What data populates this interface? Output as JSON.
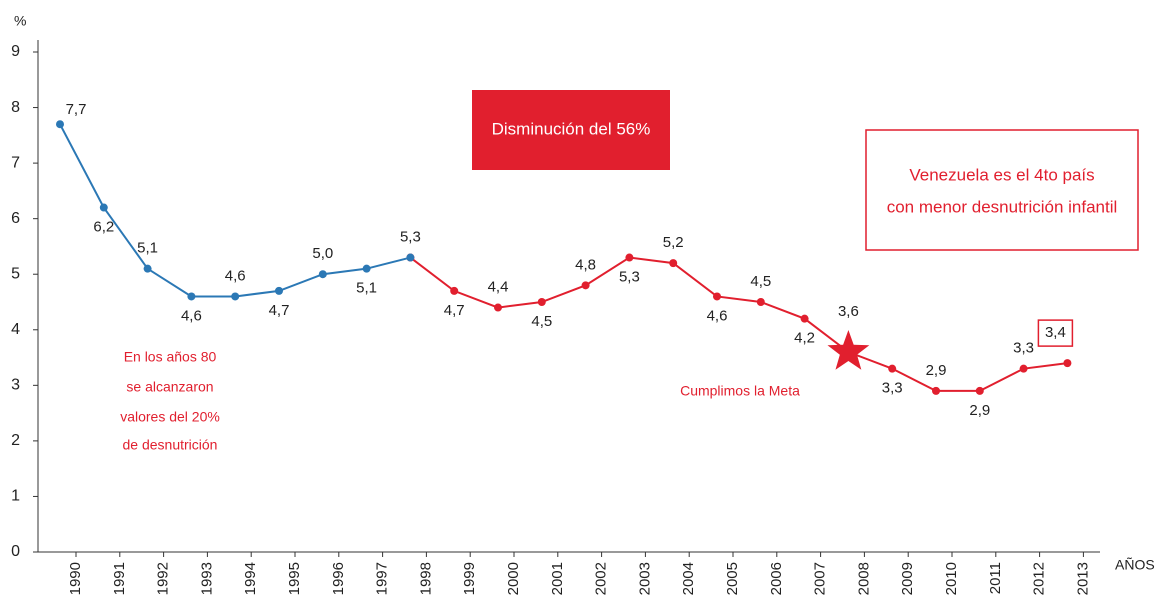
{
  "chart_data": {
    "type": "line",
    "y_label": "%",
    "x_label": "AÑOS",
    "categories": [
      "1990",
      "1991",
      "1992",
      "1993",
      "1994",
      "1995",
      "1996",
      "1997",
      "1998",
      "1999",
      "2000",
      "2001",
      "2002",
      "2003",
      "2004",
      "2005",
      "2006",
      "2007",
      "2008",
      "2009",
      "2010",
      "2011",
      "2012",
      "2013"
    ],
    "series": [
      {
        "color": "#2b78b5",
        "values": [
          7.7,
          6.2,
          5.1,
          4.6,
          4.6,
          4.7,
          5.0,
          5.1,
          5.3,
          null,
          null,
          null,
          null,
          null,
          null,
          null,
          null,
          null,
          null,
          null,
          null,
          null,
          null,
          null
        ],
        "value_labels": [
          "7,7",
          "6,2",
          "5,1",
          "4,6",
          "4,6",
          "4,7",
          "5,0",
          "5,1",
          "5,3",
          null,
          null,
          null,
          null,
          null,
          null,
          null,
          null,
          null,
          null,
          null,
          null,
          null,
          null,
          null
        ]
      },
      {
        "color": "#e11f2e",
        "values": [
          null,
          null,
          null,
          null,
          null,
          null,
          null,
          null,
          5.3,
          4.7,
          4.4,
          4.5,
          4.8,
          5.3,
          5.2,
          4.6,
          4.5,
          4.2,
          3.6,
          3.3,
          2.9,
          2.9,
          3.3,
          3.4
        ],
        "value_labels": [
          null,
          null,
          null,
          null,
          null,
          null,
          null,
          null,
          null,
          "4,7",
          "4,4",
          "4,5",
          "4,8",
          "5,3",
          "5,2",
          "4,6",
          "4,5",
          "4,2",
          "3,6",
          "3,3",
          "2,9",
          "2,9",
          "3,3",
          "3,4"
        ]
      }
    ],
    "ylim": [
      0,
      9
    ],
    "yticks": [
      0,
      1,
      2,
      3,
      4,
      5,
      6,
      7,
      8,
      9
    ],
    "annotations": {
      "reduction": "Disminución del 56%",
      "ranking": [
        "Venezuela es el 4to país",
        "con menor desnutrición infantil"
      ],
      "eighties": [
        "En los años 80",
        "se alcanzaron",
        "valores del 20%",
        "de desnutrición"
      ],
      "goal": "Cumplimos la Meta"
    }
  }
}
